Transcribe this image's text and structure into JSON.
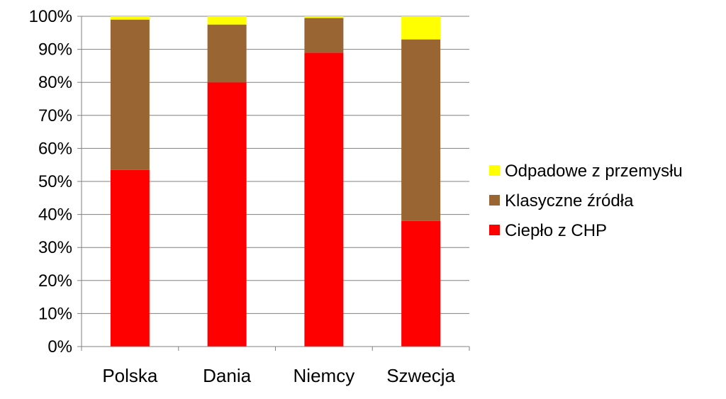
{
  "chart_data": {
    "type": "bar",
    "stacked": true,
    "categories": [
      "Polska",
      "Dania",
      "Niemcy",
      "Szwecja"
    ],
    "series": [
      {
        "name": "Ciepło z CHP",
        "color": "#ff0000",
        "values": [
          53.5,
          80,
          89,
          38
        ]
      },
      {
        "name": "Klasyczne źródła",
        "color": "#996633",
        "values": [
          45.5,
          17.5,
          10.5,
          55
        ]
      },
      {
        "name": "Odpadowe z przemysłu",
        "color": "#ffff00",
        "values": [
          1,
          2.5,
          0.5,
          7
        ]
      }
    ],
    "y_ticks": [
      "0%",
      "10%",
      "20%",
      "30%",
      "40%",
      "50%",
      "60%",
      "70%",
      "80%",
      "90%",
      "100%"
    ],
    "ylim": [
      0,
      100
    ],
    "grid": true,
    "gridline_color": "#808080",
    "legend_position": "right",
    "legend_order": [
      2,
      1,
      0
    ]
  }
}
